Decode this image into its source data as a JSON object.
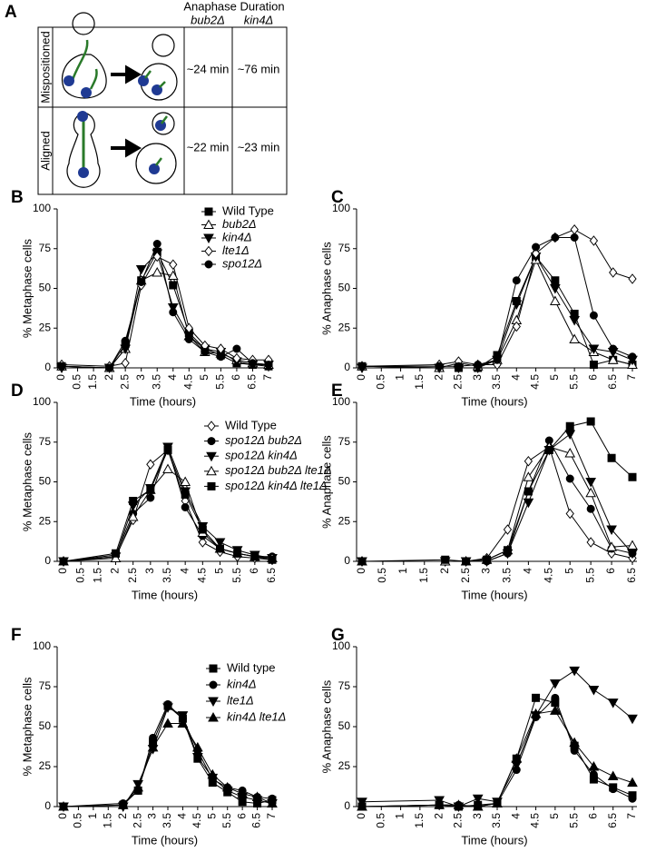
{
  "panel_a": {
    "letter": "A",
    "header": "Anaphase Duration",
    "columns": [
      "bub2Δ",
      "kin4Δ"
    ],
    "rows": [
      {
        "label": "Mispositioned",
        "values": [
          "~24 min",
          "~76 min"
        ]
      },
      {
        "label": "Aligned",
        "values": [
          "~22 min",
          "~23 min"
        ]
      }
    ]
  },
  "chart_data": [
    {
      "type": "line",
      "panel": "B",
      "ylabel": "% Metaphase cells",
      "xlabel": "Time (hours)",
      "categories": [
        "0",
        "0.5",
        "1.5",
        "2",
        "2.5",
        "3",
        "3.5",
        "4",
        "4.5",
        "5",
        "5.5",
        "6",
        "6.5",
        "7"
      ],
      "x": [
        "0",
        "2",
        "2.5",
        "3",
        "3.5",
        "4",
        "4.5",
        "5",
        "5.5",
        "6",
        "6.5",
        "7"
      ],
      "ylim": [
        0,
        100
      ],
      "yticks": [
        0,
        25,
        50,
        75,
        100
      ],
      "legend": "top-right",
      "series": [
        {
          "name": "Wild Type",
          "italic": false,
          "color": "#000000",
          "marker": "filled-square",
          "values": [
            1,
            0,
            15,
            55,
            73,
            52,
            22,
            12,
            8,
            3,
            2,
            1
          ]
        },
        {
          "name": "bub2Δ",
          "italic": true,
          "color": "#000000",
          "marker": "open-triangle",
          "values": [
            1,
            0,
            12,
            55,
            60,
            58,
            20,
            10,
            9,
            5,
            3,
            2
          ]
        },
        {
          "name": "kin4Δ",
          "italic": true,
          "color": "#000000",
          "marker": "filled-down-triangle",
          "values": [
            0,
            0,
            12,
            62,
            72,
            38,
            20,
            12,
            10,
            4,
            2,
            2
          ]
        },
        {
          "name": "lte1Δ",
          "italic": true,
          "color": "#000000",
          "marker": "open-diamond",
          "values": [
            2,
            1,
            3,
            52,
            70,
            65,
            25,
            14,
            12,
            6,
            5,
            5
          ]
        },
        {
          "name": "spo12Δ",
          "italic": true,
          "color": "#000000",
          "marker": "filled-circle",
          "values": [
            1,
            0,
            17,
            54,
            78,
            35,
            18,
            10,
            7,
            12,
            3,
            2
          ]
        }
      ]
    },
    {
      "type": "line",
      "panel": "C",
      "ylabel": "% Anaphase cells",
      "xlabel": "Time (hours)",
      "categories": [
        "0",
        "0.5",
        "1",
        "1.5",
        "2",
        "2.5",
        "3",
        "3.5",
        "4",
        "4.5",
        "5",
        "5.5",
        "6",
        "6.5",
        "7"
      ],
      "x": [
        "0",
        "2",
        "2.5",
        "3",
        "3.5",
        "4",
        "4.5",
        "5",
        "5.5",
        "6",
        "6.5",
        "7"
      ],
      "ylim": [
        0,
        100
      ],
      "yticks": [
        0,
        25,
        50,
        75,
        100
      ],
      "series": [
        {
          "color": "#000000",
          "marker": "filled-square",
          "values": [
            1,
            0,
            0,
            0,
            8,
            42,
            70,
            55,
            34,
            2,
            5,
            2
          ]
        },
        {
          "color": "#000000",
          "marker": "open-triangle",
          "values": [
            1,
            0,
            3,
            1,
            5,
            30,
            68,
            42,
            18,
            10,
            5,
            2
          ]
        },
        {
          "color": "#000000",
          "marker": "filled-down-triangle",
          "values": [
            0,
            0,
            0,
            0,
            5,
            40,
            70,
            50,
            30,
            12,
            10,
            5
          ]
        },
        {
          "color": "#000000",
          "marker": "open-diamond",
          "values": [
            1,
            2,
            4,
            2,
            2,
            26,
            72,
            82,
            87,
            80,
            60,
            56
          ]
        },
        {
          "color": "#000000",
          "marker": "filled-circle",
          "values": [
            1,
            1,
            1,
            2,
            5,
            55,
            76,
            82,
            82,
            33,
            12,
            7
          ]
        }
      ]
    },
    {
      "type": "line",
      "panel": "D",
      "ylabel": "% Metaphase cells",
      "xlabel": "Time (hours)",
      "categories": [
        "0",
        "0.5",
        "1.5",
        "2",
        "2.5",
        "3",
        "3.5",
        "4",
        "4.5",
        "5",
        "5.5",
        "6",
        "6.5"
      ],
      "x": [
        "0",
        "2",
        "2.5",
        "3",
        "3.5",
        "4",
        "4.5",
        "5",
        "5.5",
        "6",
        "6.5"
      ],
      "ylim": [
        0,
        100
      ],
      "yticks": [
        0,
        25,
        50,
        75,
        100
      ],
      "legend": "top-right",
      "series": [
        {
          "name": "Wild Type",
          "italic": false,
          "color": "#000000",
          "marker": "open-diamond",
          "values": [
            0,
            3,
            26,
            61,
            70,
            38,
            12,
            6,
            3,
            2,
            1
          ]
        },
        {
          "name": "spo12Δ bub2Δ",
          "italic": true,
          "color": "#000000",
          "marker": "filled-circle",
          "values": [
            0,
            4,
            30,
            40,
            72,
            34,
            16,
            8,
            5,
            3,
            3
          ]
        },
        {
          "name": "spo12Δ kin4Δ",
          "italic": true,
          "color": "#000000",
          "marker": "filled-down-triangle",
          "values": [
            0,
            3,
            35,
            46,
            72,
            44,
            22,
            12,
            7,
            4,
            2
          ]
        },
        {
          "name": "spo12Δ bub2Δ lte1Δ",
          "italic": true,
          "color": "#000000",
          "marker": "open-triangle",
          "values": [
            0,
            2,
            28,
            45,
            58,
            50,
            18,
            8,
            5,
            3,
            2
          ]
        },
        {
          "name": "spo12Δ kin4Δ lte1Δ",
          "italic": true,
          "color": "#000000",
          "marker": "filled-square",
          "values": [
            0,
            5,
            38,
            45,
            70,
            42,
            20,
            8,
            5,
            3,
            1
          ]
        }
      ]
    },
    {
      "type": "line",
      "panel": "E",
      "ylabel": "% Anaphase cells",
      "xlabel": "Time (hours)",
      "categories": [
        "0",
        "0.5",
        "1",
        "1.5",
        "2",
        "2.5",
        "3",
        "3.5",
        "4",
        "4.5",
        "5",
        "5.5",
        "6",
        "6.5"
      ],
      "x": [
        "0",
        "2",
        "2.5",
        "3",
        "3.5",
        "4",
        "4.5",
        "5",
        "5.5",
        "6",
        "6.5"
      ],
      "ylim": [
        0,
        100
      ],
      "yticks": [
        0,
        25,
        50,
        75,
        100
      ],
      "series": [
        {
          "color": "#000000",
          "marker": "open-diamond",
          "values": [
            0,
            0,
            0,
            2,
            20,
            63,
            72,
            30,
            12,
            5,
            2
          ]
        },
        {
          "color": "#000000",
          "marker": "filled-circle",
          "values": [
            0,
            0,
            0,
            0,
            5,
            44,
            76,
            52,
            33,
            8,
            5
          ]
        },
        {
          "color": "#000000",
          "marker": "filled-down-triangle",
          "values": [
            0,
            0,
            0,
            0,
            5,
            37,
            70,
            80,
            50,
            20,
            5
          ]
        },
        {
          "color": "#000000",
          "marker": "open-triangle",
          "values": [
            0,
            0,
            0,
            1,
            7,
            53,
            72,
            68,
            43,
            9,
            10
          ]
        },
        {
          "color": "#000000",
          "marker": "filled-square",
          "values": [
            0,
            1,
            0,
            1,
            7,
            44,
            70,
            85,
            88,
            65,
            53
          ]
        }
      ]
    },
    {
      "type": "line",
      "panel": "F",
      "ylabel": "% Metaphase cells",
      "xlabel": "Time (hours)",
      "categories": [
        "0",
        "0.5",
        "1",
        "1.5",
        "2",
        "2.5",
        "3",
        "3.5",
        "4",
        "4.5",
        "5",
        "5.5",
        "6",
        "6.5",
        "7"
      ],
      "x": [
        "0",
        "2",
        "2.5",
        "3",
        "3.5",
        "4",
        "4.5",
        "5",
        "5.5",
        "6",
        "6.5",
        "7"
      ],
      "ylim": [
        0,
        100
      ],
      "yticks": [
        0,
        25,
        50,
        75,
        100
      ],
      "legend": "top-right",
      "series": [
        {
          "name": "Wild type",
          "italic": false,
          "color": "#000000",
          "marker": "filled-square",
          "values": [
            0,
            1,
            10,
            40,
            63,
            55,
            30,
            15,
            9,
            3,
            2,
            4
          ]
        },
        {
          "name": "kin4Δ",
          "italic": true,
          "color": "#000000",
          "marker": "filled-circle",
          "values": [
            0,
            2,
            10,
            43,
            64,
            55,
            35,
            17,
            12,
            10,
            6,
            5
          ]
        },
        {
          "name": "lte1Δ",
          "italic": true,
          "color": "#000000",
          "marker": "filled-down-triangle",
          "values": [
            0,
            0,
            14,
            36,
            62,
            57,
            31,
            18,
            10,
            6,
            4,
            2
          ]
        },
        {
          "name": "kin4Δ lte1Δ",
          "italic": true,
          "color": "#000000",
          "marker": "filled-up-triangle",
          "values": [
            0,
            1,
            12,
            37,
            52,
            52,
            37,
            20,
            12,
            8,
            6,
            2
          ]
        }
      ]
    },
    {
      "type": "line",
      "panel": "G",
      "ylabel": "% Anaphase cells",
      "xlabel": "Time (hours)",
      "categories": [
        "0",
        "0.5",
        "1",
        "1.5",
        "2",
        "2.5",
        "3",
        "3.5",
        "4",
        "4.5",
        "5",
        "5.5",
        "6",
        "6.5",
        "7"
      ],
      "x": [
        "0",
        "2",
        "2.5",
        "3",
        "3.5",
        "4",
        "4.5",
        "5",
        "5.5",
        "6",
        "6.5",
        "7"
      ],
      "ylim": [
        0,
        100
      ],
      "yticks": [
        0,
        25,
        50,
        75,
        100
      ],
      "series": [
        {
          "color": "#000000",
          "marker": "filled-square",
          "values": [
            0,
            1,
            0,
            1,
            2,
            30,
            68,
            65,
            38,
            17,
            12,
            7
          ]
        },
        {
          "color": "#000000",
          "marker": "filled-circle",
          "values": [
            0,
            1,
            1,
            0,
            2,
            23,
            56,
            68,
            35,
            20,
            11,
            5
          ]
        },
        {
          "color": "#000000",
          "marker": "filled-down-triangle",
          "values": [
            3,
            4,
            0,
            5,
            3,
            26,
            57,
            77,
            85,
            73,
            65,
            55
          ]
        },
        {
          "color": "#000000",
          "marker": "filled-up-triangle",
          "values": [
            0,
            1,
            1,
            0,
            2,
            30,
            58,
            60,
            40,
            25,
            19,
            15
          ]
        }
      ]
    }
  ]
}
